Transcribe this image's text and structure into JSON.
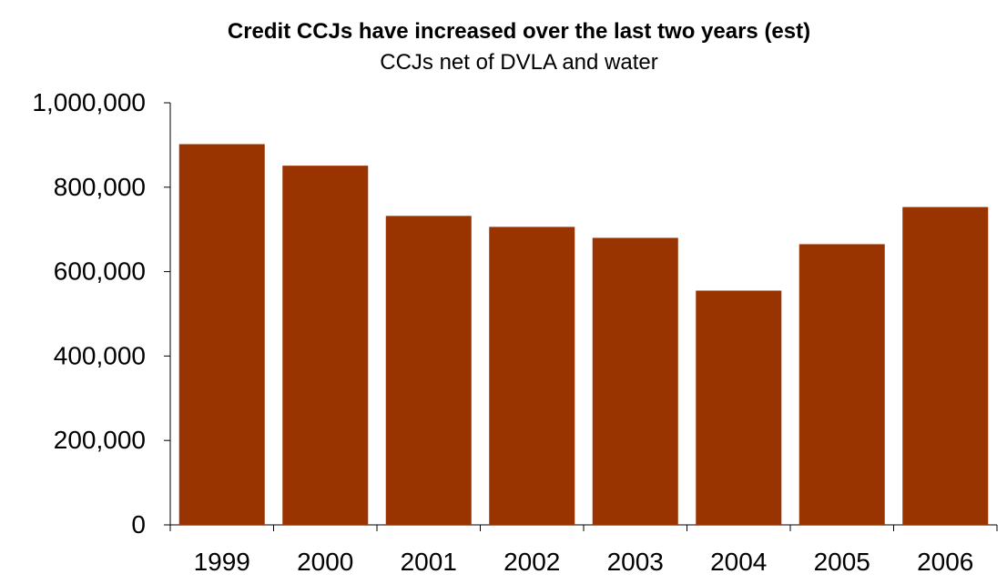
{
  "chart_data": {
    "type": "bar",
    "title": "Credit CCJs have increased over the last two years (est)",
    "subtitle": "CCJs net of DVLA and water",
    "xlabel": "",
    "ylabel": "",
    "categories": [
      "1999",
      "2000",
      "2001",
      "2002",
      "2003",
      "2004",
      "2005",
      "2006"
    ],
    "values": [
      902000,
      851000,
      732000,
      706000,
      680000,
      555000,
      665000,
      753000
    ],
    "ylim": [
      0,
      1000000
    ],
    "yticks": [
      0,
      200000,
      400000,
      600000,
      800000,
      1000000
    ],
    "ytick_labels": [
      "0",
      "200,000",
      "400,000",
      "600,000",
      "800,000",
      "1,000,000"
    ],
    "grid": false,
    "legend": "none",
    "bar_color": "#993300"
  }
}
